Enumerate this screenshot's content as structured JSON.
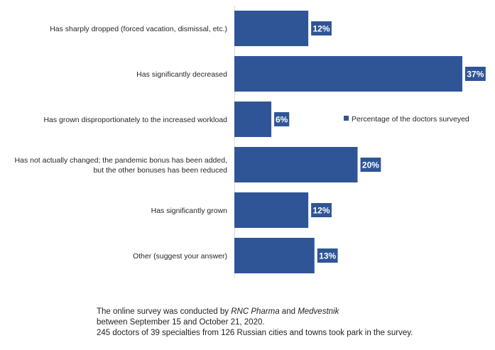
{
  "chart_data": {
    "type": "bar",
    "orientation": "horizontal",
    "categories": [
      [
        "Has sharply dropped (forced vacation, dismissal, etc.)"
      ],
      [
        "Has significantly decreased"
      ],
      [
        "Has grown disproportionately to the increased workload"
      ],
      [
        "Has not actually changed; the pandemic bonus has been added,",
        "but the other bonuses has been reduced"
      ],
      [
        "Has significantly grown"
      ],
      [
        "Other (suggest your answer)"
      ]
    ],
    "series": [
      {
        "name": "Percentage of the doctors surveyed",
        "values": [
          12,
          37,
          6,
          20,
          12,
          13
        ],
        "color": "#2f5597"
      }
    ],
    "value_labels": [
      "12%",
      "37%",
      "6%",
      "20%",
      "12%",
      "13%"
    ],
    "xlim": [
      0,
      37
    ],
    "legend_position": "right"
  },
  "note": {
    "line1_prefix": "The online survey was conducted by ",
    "line1_em1": "RNC Pharma",
    "line1_mid": " and ",
    "line1_em2": "Medvestnik",
    "line2": "between September 15 and October 21, 2020.",
    "line3": "245 doctors of 39 specialties from 126 Russian cities and towns took park in the survey."
  }
}
